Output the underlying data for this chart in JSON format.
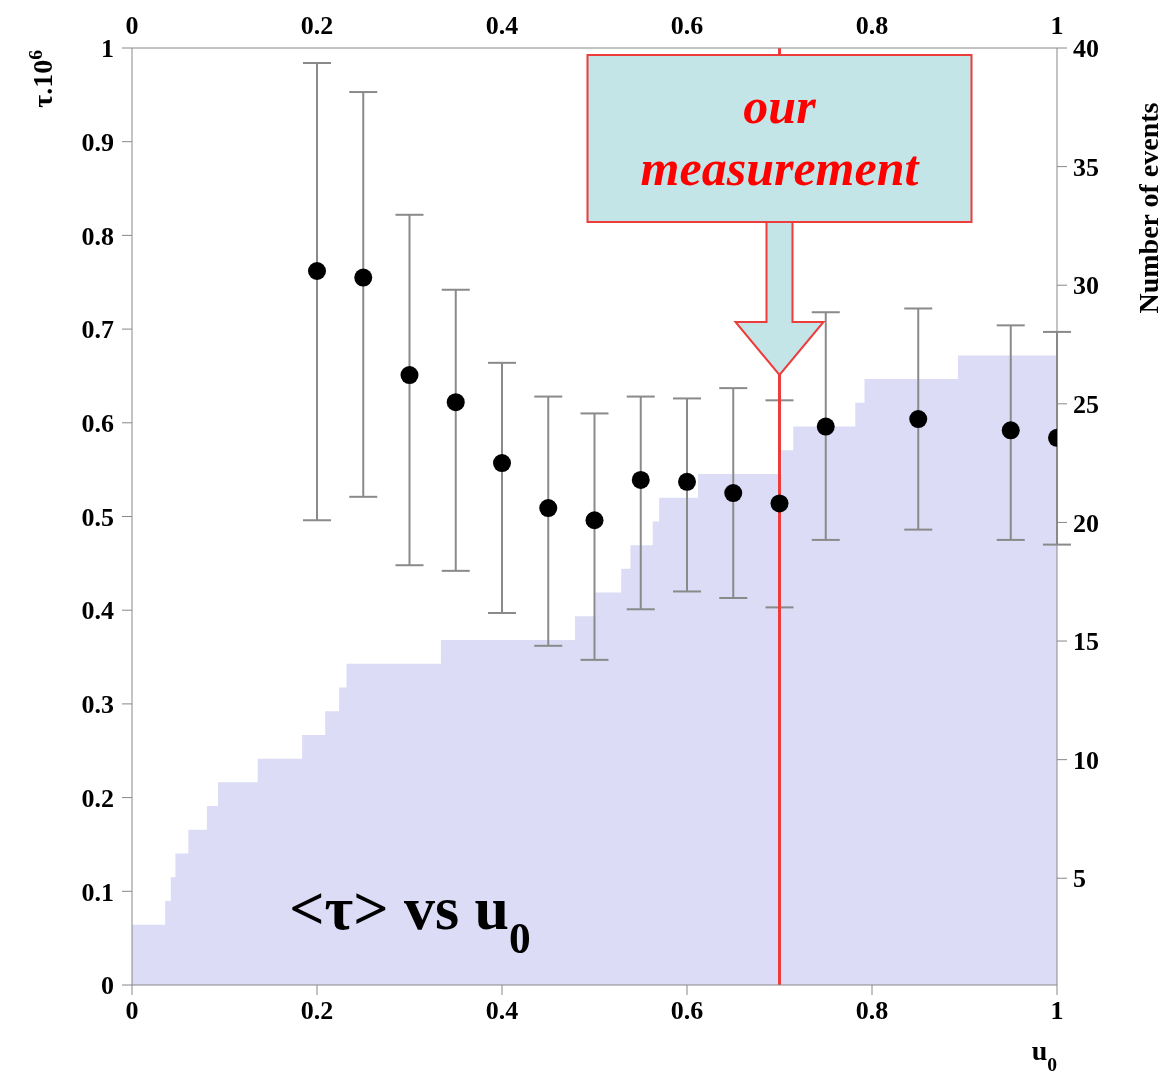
{
  "chart_data": {
    "type": "scatter",
    "xlabel": "u$_{0}$",
    "ylabel": "τ.10$^{6}$",
    "y2label": "Number of events",
    "xlim": [
      0,
      1
    ],
    "xticks": [
      0,
      0.2,
      0.4,
      0.6,
      0.8,
      1
    ],
    "x2lim": [
      0,
      1
    ],
    "x2ticks": [
      0,
      0.2,
      0.4,
      0.6,
      0.8,
      1
    ],
    "ylim": [
      0,
      1
    ],
    "yticks": [
      0,
      0.1,
      0.2,
      0.3,
      0.4,
      0.5,
      0.6,
      0.7,
      0.8,
      0.9,
      1
    ],
    "y2lim": [
      0.5,
      40
    ],
    "y2ticks": [
      5,
      10,
      15,
      20,
      25,
      30,
      35,
      40
    ],
    "series": [
      {
        "type": "area",
        "axis": "y2",
        "color": "#dcdcf6",
        "x": [
          0,
          0.037,
          0.037,
          0.043,
          0.043,
          0.048,
          0.048,
          0.062,
          0.062,
          0.082,
          0.082,
          0.094,
          0.094,
          0.137,
          0.137,
          0.185,
          0.185,
          0.21,
          0.21,
          0.225,
          0.225,
          0.233,
          0.233,
          0.335,
          0.335,
          0.48,
          0.48,
          0.502,
          0.502,
          0.53,
          0.53,
          0.54,
          0.54,
          0.564,
          0.564,
          0.571,
          0.571,
          0.613,
          0.613,
          0.703,
          0.703,
          0.716,
          0.716,
          0.783,
          0.783,
          0.793,
          0.793,
          0.894,
          0.894,
          1
        ],
        "values": [
          3,
          3,
          4,
          4,
          5,
          5,
          6,
          6,
          7,
          7,
          8,
          8,
          9,
          9,
          10,
          10,
          11,
          11,
          12,
          12,
          13,
          13,
          14,
          14,
          15,
          15,
          16,
          16,
          17,
          17,
          18,
          18,
          19,
          19,
          20,
          20,
          21,
          21,
          22,
          22,
          23,
          23,
          24,
          24,
          25,
          25,
          26,
          26,
          27,
          27
        ]
      },
      {
        "color": "#000000",
        "marker": "circle",
        "x": [
          0.2,
          0.25,
          0.3,
          0.35,
          0.4,
          0.45,
          0.5,
          0.55,
          0.6,
          0.65,
          0.7,
          0.75,
          0.85,
          0.95,
          1
        ],
        "values": [
          0.762,
          0.755,
          0.651,
          0.622,
          0.557,
          0.509,
          0.496,
          0.539,
          0.537,
          0.525,
          0.514,
          0.596,
          0.604,
          0.592,
          0.584
        ],
        "errors": [
          [
            0.496,
            0.984
          ],
          [
            0.521,
            0.953
          ],
          [
            0.448,
            0.822
          ],
          [
            0.442,
            0.742
          ],
          [
            0.397,
            0.664
          ],
          [
            0.362,
            0.628
          ],
          [
            0.347,
            0.61
          ],
          [
            0.401,
            0.628
          ],
          [
            0.42,
            0.626
          ],
          [
            0.413,
            0.637
          ],
          [
            0.403,
            0.624
          ],
          [
            0.475,
            0.718
          ],
          [
            0.486,
            0.722
          ],
          [
            0.475,
            0.704
          ],
          [
            0.47,
            0.697
          ]
        ]
      }
    ],
    "ref_lines": [
      {
        "axis": "x",
        "value": 0.7,
        "color": "#ee3b3b"
      }
    ],
    "annotations": [
      "our measurement",
      "<τ> vs u$_{0}$"
    ]
  }
}
